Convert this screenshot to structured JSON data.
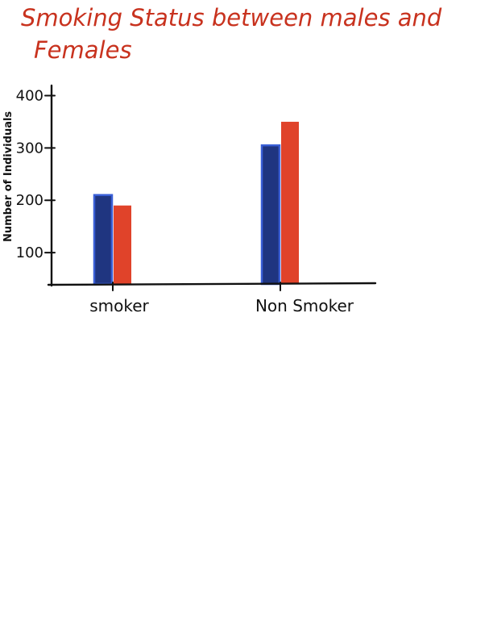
{
  "chart_data": {
    "type": "bar",
    "title_lines": [
      "Smoking Status  between males and",
      "Females"
    ],
    "xlabel": "",
    "ylabel": "Number of Individuals",
    "categories": [
      "smoker",
      "Non Smoker"
    ],
    "series": [
      {
        "values": [
          210,
          305
        ],
        "color": "#1f3580",
        "outline": "#3a5fd6"
      },
      {
        "values": [
          190,
          350
        ],
        "color": "#e0432a",
        "outline": "#e0432a"
      }
    ],
    "ylim": [
      40,
      410
    ],
    "yticks": [
      {
        "value": 100,
        "label": "100"
      },
      {
        "value": 200,
        "label": "200"
      },
      {
        "value": 300,
        "label": "300"
      },
      {
        "value": 400,
        "label": "400"
      }
    ],
    "legend": "none",
    "grid": false,
    "colors": {
      "title": "#c8321e",
      "axis": "#111111"
    }
  }
}
